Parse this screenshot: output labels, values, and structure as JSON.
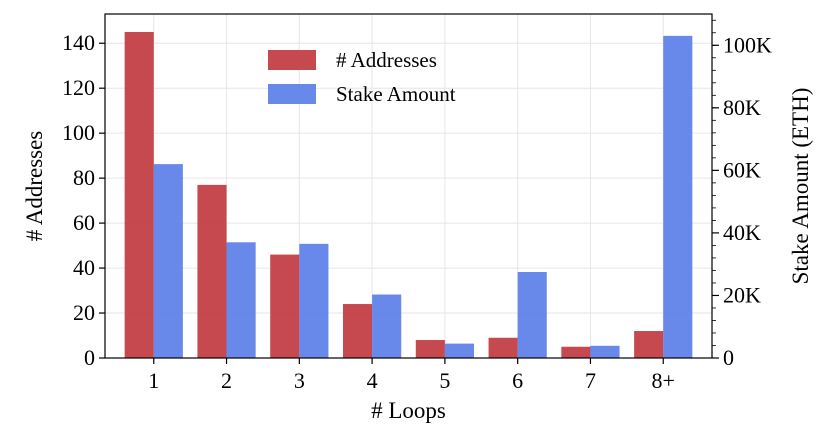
{
  "chart_data": {
    "type": "bar",
    "categories": [
      "1",
      "2",
      "3",
      "4",
      "5",
      "6",
      "7",
      "8+"
    ],
    "xlabel": "# Loops",
    "ylabel_left": "# Addresses",
    "ylabel_right": "Stake Amount (ETH)",
    "ylim_left": [
      0,
      153
    ],
    "ylim_right": [
      0,
      110000
    ],
    "yticks_left": [
      0,
      20,
      40,
      60,
      80,
      100,
      120,
      140
    ],
    "yticks_right": [
      0,
      20000,
      40000,
      60000,
      80000,
      100000
    ],
    "yticks_right_labels": [
      "0",
      "20K",
      "40K",
      "60K",
      "80K",
      "100K"
    ],
    "grid": true,
    "legend_position": "top-center",
    "series": [
      {
        "name": "# Addresses",
        "axis": "left",
        "color": "#c0393f",
        "values": [
          145,
          77,
          46,
          24,
          8,
          9,
          5,
          12
        ]
      },
      {
        "name": "Stake Amount",
        "axis": "right",
        "color": "#5b7fe8",
        "values": [
          62000,
          37000,
          36500,
          20300,
          4600,
          27500,
          3900,
          103000
        ]
      }
    ]
  }
}
